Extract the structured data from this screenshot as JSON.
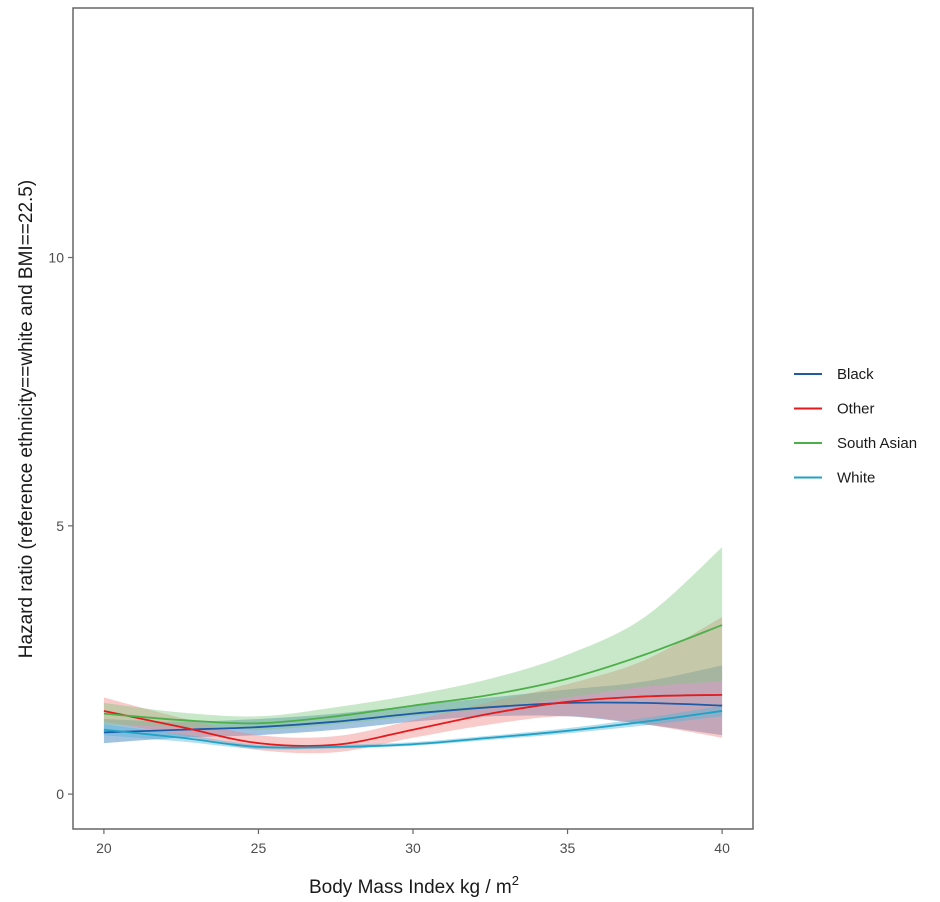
{
  "chart_data": {
    "type": "line",
    "title": "",
    "xlabel": "Body Mass Index kg / m",
    "xlabel_superscript": "2",
    "ylabel": "Hazard ratio (reference ethnicity==white and BMI==22.5)",
    "xlim": [
      19,
      41
    ],
    "ylim": [
      -0.65,
      14.65
    ],
    "x_ticks": [
      20,
      25,
      30,
      35,
      40
    ],
    "y_ticks": [
      0,
      5,
      10
    ],
    "grid": false,
    "legend_position": "right",
    "x": [
      20,
      22.5,
      25,
      27.5,
      30,
      32.5,
      35,
      37.5,
      40
    ],
    "series": [
      {
        "name": "Black",
        "color": "#1f5aa6",
        "fill": "#2171b5",
        "values": [
          1.15,
          1.2,
          1.25,
          1.35,
          1.5,
          1.62,
          1.7,
          1.7,
          1.65
        ],
        "lower": [
          0.95,
          1.05,
          1.1,
          1.2,
          1.35,
          1.45,
          1.45,
          1.3,
          1.1
        ],
        "upper": [
          1.4,
          1.35,
          1.4,
          1.5,
          1.65,
          1.8,
          1.95,
          2.1,
          2.4
        ]
      },
      {
        "name": "Other",
        "color": "#e41a1c",
        "fill": "#f08080",
        "values": [
          1.55,
          1.25,
          0.95,
          0.92,
          1.2,
          1.5,
          1.72,
          1.82,
          1.85
        ],
        "lower": [
          1.35,
          1.1,
          0.82,
          0.78,
          1.05,
          1.3,
          1.45,
          1.3,
          1.05
        ],
        "upper": [
          1.8,
          1.42,
          1.1,
          1.08,
          1.38,
          1.72,
          2.05,
          2.5,
          3.3
        ]
      },
      {
        "name": "South Asian",
        "color": "#4daf4a",
        "fill": "#7fc97f",
        "values": [
          1.5,
          1.38,
          1.32,
          1.45,
          1.65,
          1.85,
          2.15,
          2.6,
          3.15
        ],
        "lower": [
          1.3,
          1.25,
          1.2,
          1.3,
          1.45,
          1.6,
          1.8,
          2.0,
          2.1
        ],
        "upper": [
          1.7,
          1.52,
          1.45,
          1.62,
          1.85,
          2.15,
          2.6,
          3.3,
          4.6
        ]
      },
      {
        "name": "White",
        "color": "#1fa2c5",
        "fill": "#4fb3d9",
        "values": [
          1.2,
          1.05,
          0.88,
          0.88,
          0.93,
          1.05,
          1.18,
          1.35,
          1.55
        ],
        "lower": [
          1.1,
          0.98,
          0.84,
          0.85,
          0.9,
          1.01,
          1.13,
          1.28,
          1.45
        ],
        "upper": [
          1.3,
          1.12,
          0.92,
          0.92,
          0.97,
          1.09,
          1.23,
          1.42,
          1.65
        ]
      }
    ]
  }
}
